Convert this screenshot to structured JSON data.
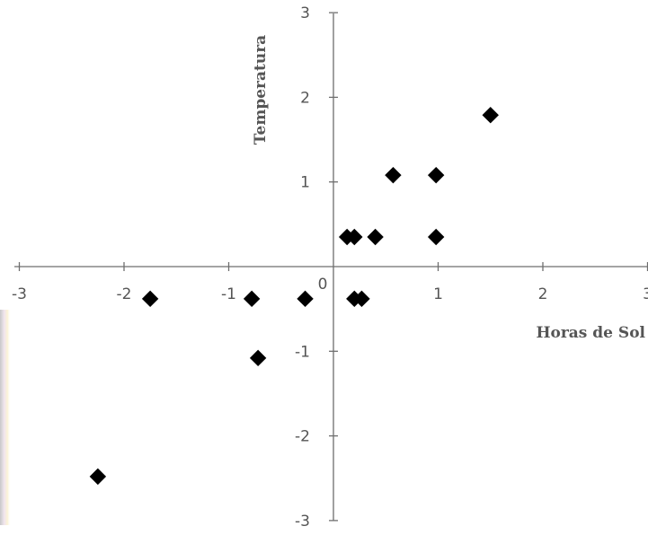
{
  "chart_data": {
    "type": "scatter",
    "xlabel": "Horas de Sol",
    "ylabel": "Temperatura",
    "xlim": [
      -3,
      3
    ],
    "ylim": [
      -3,
      3
    ],
    "x_ticks": [
      "-3",
      "-2",
      "-1",
      "1",
      "2",
      "3"
    ],
    "y_ticks": [
      "3",
      "2",
      "1",
      "-1",
      "-2",
      "-3"
    ],
    "origin_label": "0",
    "grid": false,
    "legend": "none",
    "marker": "diamond",
    "marker_color": "#000000",
    "points": [
      {
        "x": -2.25,
        "y": -2.48
      },
      {
        "x": -1.75,
        "y": -0.38
      },
      {
        "x": -0.78,
        "y": -0.38
      },
      {
        "x": -0.72,
        "y": -1.08
      },
      {
        "x": -0.27,
        "y": -0.38
      },
      {
        "x": 0.13,
        "y": 0.35
      },
      {
        "x": 0.2,
        "y": 0.35
      },
      {
        "x": 0.2,
        "y": -0.38
      },
      {
        "x": 0.27,
        "y": -0.38
      },
      {
        "x": 0.4,
        "y": 0.35
      },
      {
        "x": 0.57,
        "y": 1.08
      },
      {
        "x": 0.98,
        "y": 1.08
      },
      {
        "x": 0.98,
        "y": 0.35
      },
      {
        "x": 1.5,
        "y": 1.79
      }
    ]
  }
}
